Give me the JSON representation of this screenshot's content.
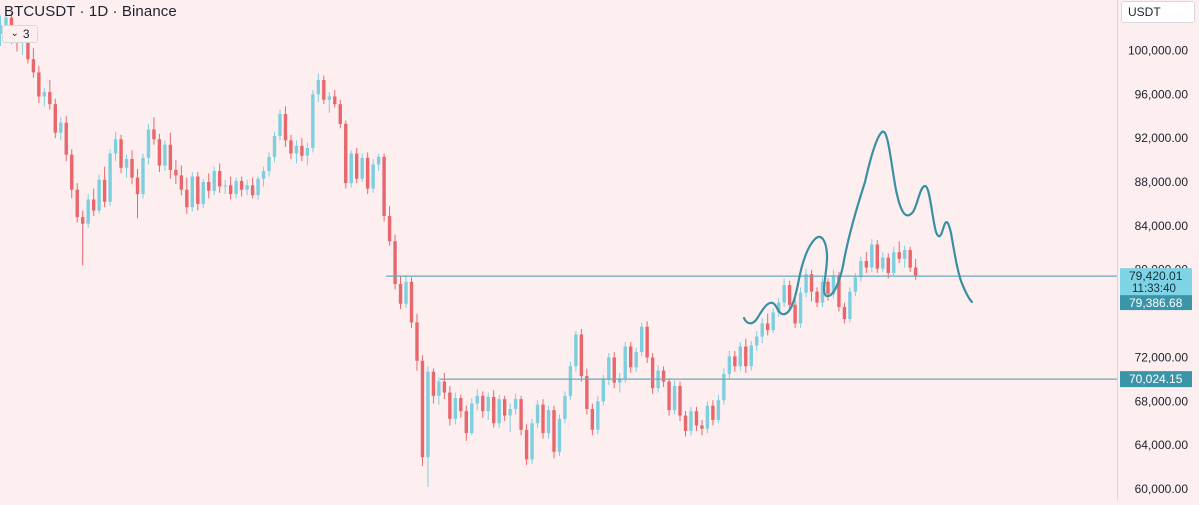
{
  "header": {
    "title": "BTCUSDT · 1D · Binance",
    "indicator_count": "3"
  },
  "currency_selector": {
    "value": "USDT"
  },
  "price_scale": {
    "ticks": [
      "100,000.00",
      "96,000.00",
      "92,000.00",
      "88,000.00",
      "84,000.00",
      "80,000.00",
      "72,000.00",
      "68,000.00",
      "64,000.00",
      "60,000.00"
    ],
    "tick_values": [
      100000,
      96000,
      92000,
      88000,
      84000,
      80000,
      72000,
      68000,
      64000,
      60000
    ]
  },
  "price_labels": {
    "last_price": "79,420.01",
    "countdown": "11:33:40",
    "price_line_2": "79,386.68",
    "support_level": "70,024.15"
  },
  "colors": {
    "background": "#fdeff0",
    "up_candle": "#7dcfdf",
    "down_candle": "#e8676d",
    "drawing_line": "#3a8fa3",
    "label_bg_light": "#7ed3e5",
    "label_bg_dark": "#3a95a8"
  },
  "chart_data": {
    "type": "candlestick",
    "symbol": "BTCUSDT",
    "interval": "1D",
    "exchange": "Binance",
    "y_range": [
      59000,
      104600
    ],
    "horizontal_levels": [
      79420.01,
      70024.15
    ],
    "candles": [
      [
        101500,
        103200,
        100400,
        102300
      ],
      [
        102300,
        103600,
        101500,
        103000
      ],
      [
        103000,
        103400,
        100600,
        101200
      ],
      [
        101200,
        102000,
        99900,
        100800
      ],
      [
        100800,
        101600,
        99600,
        101100
      ],
      [
        101100,
        101800,
        98800,
        99200
      ],
      [
        99200,
        100200,
        97500,
        98000
      ],
      [
        98000,
        98600,
        95200,
        95800
      ],
      [
        95800,
        96600,
        94900,
        96200
      ],
      [
        96200,
        97300,
        94600,
        95100
      ],
      [
        95100,
        95600,
        92000,
        92500
      ],
      [
        92500,
        93900,
        91800,
        93400
      ],
      [
        93400,
        94000,
        89900,
        90500
      ],
      [
        90500,
        91000,
        86500,
        87300
      ],
      [
        87300,
        87900,
        84300,
        84800
      ],
      [
        84800,
        85400,
        80400,
        84200
      ],
      [
        84200,
        86900,
        83800,
        86400
      ],
      [
        86400,
        87400,
        84900,
        85400
      ],
      [
        85400,
        88700,
        85100,
        88200
      ],
      [
        88200,
        89400,
        85700,
        86200
      ],
      [
        86200,
        91000,
        85800,
        90600
      ],
      [
        90600,
        92600,
        89900,
        91900
      ],
      [
        91900,
        92300,
        88800,
        89300
      ],
      [
        89300,
        90500,
        88400,
        90100
      ],
      [
        90100,
        90900,
        87800,
        88400
      ],
      [
        88400,
        89200,
        84700,
        86900
      ],
      [
        86900,
        90600,
        86500,
        90200
      ],
      [
        90200,
        93300,
        89600,
        92800
      ],
      [
        92800,
        93900,
        91400,
        91900
      ],
      [
        91900,
        92400,
        88900,
        89500
      ],
      [
        89500,
        91800,
        89000,
        91400
      ],
      [
        91400,
        92500,
        88300,
        89100
      ],
      [
        89100,
        90000,
        87800,
        88600
      ],
      [
        88600,
        89500,
        86800,
        87300
      ],
      [
        87300,
        88400,
        85100,
        85700
      ],
      [
        85700,
        88900,
        85300,
        88500
      ],
      [
        88500,
        88900,
        85400,
        86000
      ],
      [
        86000,
        88300,
        85600,
        88000
      ],
      [
        88000,
        88800,
        86500,
        87200
      ],
      [
        87200,
        89400,
        86800,
        89000
      ],
      [
        89000,
        89700,
        87000,
        87600
      ],
      [
        87600,
        88200,
        86900,
        87700
      ],
      [
        87700,
        88500,
        86400,
        86900
      ],
      [
        86900,
        88400,
        86500,
        88100
      ],
      [
        88100,
        88500,
        86700,
        87300
      ],
      [
        87300,
        88200,
        86800,
        87700
      ],
      [
        87700,
        88400,
        86500,
        86800
      ],
      [
        86800,
        88500,
        86400,
        88300
      ],
      [
        88300,
        89400,
        87600,
        89000
      ],
      [
        89000,
        90700,
        88500,
        90300
      ],
      [
        90300,
        92600,
        89800,
        92200
      ],
      [
        92200,
        94600,
        91800,
        94200
      ],
      [
        94200,
        94900,
        91200,
        91800
      ],
      [
        91800,
        92300,
        90100,
        90600
      ],
      [
        90600,
        91800,
        89700,
        91300
      ],
      [
        91300,
        92000,
        89900,
        90400
      ],
      [
        90400,
        91600,
        89500,
        91100
      ],
      [
        91100,
        96400,
        90700,
        96000
      ],
      [
        96000,
        97900,
        95300,
        97300
      ],
      [
        97300,
        97700,
        95100,
        95500
      ],
      [
        95500,
        96200,
        94300,
        95800
      ],
      [
        95800,
        96400,
        94800,
        95100
      ],
      [
        95100,
        95500,
        92900,
        93300
      ],
      [
        93300,
        93600,
        87400,
        87900
      ],
      [
        87900,
        90900,
        87500,
        90600
      ],
      [
        90600,
        91100,
        87900,
        88300
      ],
      [
        88300,
        90600,
        88000,
        90200
      ],
      [
        90200,
        90700,
        86900,
        87400
      ],
      [
        87400,
        90100,
        87000,
        89600
      ],
      [
        89600,
        90600,
        89000,
        90300
      ],
      [
        90300,
        90600,
        84400,
        84900
      ],
      [
        84900,
        85800,
        82200,
        82600
      ],
      [
        82600,
        83200,
        78200,
        78700
      ],
      [
        78700,
        79400,
        76400,
        76900
      ],
      [
        76900,
        79500,
        76500,
        78900
      ],
      [
        78900,
        79300,
        74700,
        75200
      ],
      [
        75200,
        76000,
        70800,
        71700
      ],
      [
        71700,
        72200,
        62100,
        62900
      ],
      [
        62900,
        71200,
        60200,
        70700
      ],
      [
        70700,
        71000,
        67800,
        68500
      ],
      [
        68500,
        70200,
        67700,
        69800
      ],
      [
        69800,
        70600,
        68200,
        68800
      ],
      [
        68800,
        69400,
        65800,
        66400
      ],
      [
        66400,
        68800,
        65900,
        68300
      ],
      [
        68300,
        68600,
        66500,
        67100
      ],
      [
        67100,
        67600,
        64400,
        65100
      ],
      [
        65100,
        68300,
        64900,
        67800
      ],
      [
        67800,
        69100,
        67200,
        68500
      ],
      [
        68500,
        68900,
        66500,
        67100
      ],
      [
        67100,
        68800,
        66300,
        68400
      ],
      [
        68400,
        69000,
        65600,
        66000
      ],
      [
        66000,
        68600,
        65600,
        68200
      ],
      [
        68200,
        68500,
        66200,
        66700
      ],
      [
        66700,
        67800,
        65200,
        67300
      ],
      [
        67300,
        68700,
        66800,
        68200
      ],
      [
        68200,
        68500,
        64900,
        65400
      ],
      [
        65400,
        65900,
        62200,
        62700
      ],
      [
        62700,
        66400,
        62300,
        66000
      ],
      [
        66000,
        68100,
        65600,
        67700
      ],
      [
        67700,
        68200,
        64600,
        65100
      ],
      [
        65100,
        67600,
        64600,
        67200
      ],
      [
        67200,
        67600,
        62800,
        63400
      ],
      [
        63400,
        66800,
        63000,
        66400
      ],
      [
        66400,
        68900,
        66000,
        68500
      ],
      [
        68500,
        71600,
        68100,
        71200
      ],
      [
        71200,
        74400,
        70700,
        74100
      ],
      [
        74100,
        74600,
        69800,
        70300
      ],
      [
        70300,
        71000,
        66800,
        67300
      ],
      [
        67300,
        67800,
        64900,
        65400
      ],
      [
        65400,
        68500,
        65000,
        68000
      ],
      [
        68000,
        70400,
        67600,
        70000
      ],
      [
        70000,
        72400,
        69500,
        72000
      ],
      [
        72000,
        72500,
        69200,
        69700
      ],
      [
        69700,
        70600,
        68800,
        70100
      ],
      [
        70100,
        73400,
        69700,
        73000
      ],
      [
        73000,
        73400,
        70600,
        71100
      ],
      [
        71100,
        72900,
        70700,
        72500
      ],
      [
        72500,
        75200,
        72100,
        74800
      ],
      [
        74800,
        75300,
        71500,
        72000
      ],
      [
        72000,
        72400,
        68700,
        69200
      ],
      [
        69200,
        71300,
        68800,
        70800
      ],
      [
        70800,
        71200,
        69300,
        69800
      ],
      [
        69800,
        70100,
        66700,
        67200
      ],
      [
        67200,
        69900,
        66800,
        69400
      ],
      [
        69400,
        69800,
        66200,
        66700
      ],
      [
        66700,
        67100,
        64800,
        65300
      ],
      [
        65300,
        67500,
        64900,
        67100
      ],
      [
        67100,
        67500,
        65300,
        65800
      ],
      [
        65800,
        66300,
        64900,
        65500
      ],
      [
        65500,
        68000,
        65100,
        67600
      ],
      [
        67600,
        68100,
        65800,
        66300
      ],
      [
        66300,
        68600,
        66000,
        68100
      ],
      [
        68100,
        71000,
        67700,
        70500
      ],
      [
        70500,
        72600,
        70100,
        72100
      ],
      [
        72100,
        72600,
        70700,
        71200
      ],
      [
        71200,
        73400,
        70800,
        73000
      ],
      [
        73000,
        73700,
        70600,
        71200
      ],
      [
        71200,
        73500,
        70800,
        73100
      ],
      [
        73100,
        74400,
        72600,
        73900
      ],
      [
        73900,
        75600,
        73300,
        75100
      ],
      [
        75100,
        76000,
        74000,
        74500
      ],
      [
        74500,
        76500,
        74200,
        76100
      ],
      [
        76100,
        77400,
        75700,
        77000
      ],
      [
        77000,
        79200,
        76600,
        78600
      ],
      [
        78600,
        79000,
        76300,
        76800
      ],
      [
        76800,
        77400,
        74700,
        75100
      ],
      [
        75100,
        78400,
        74700,
        77900
      ],
      [
        77900,
        80100,
        77500,
        79600
      ],
      [
        79600,
        80000,
        77100,
        78000
      ],
      [
        78000,
        78400,
        76600,
        77000
      ],
      [
        77000,
        79300,
        76600,
        78900
      ],
      [
        78900,
        79200,
        77200,
        77800
      ],
      [
        77800,
        80000,
        77400,
        79500
      ],
      [
        79500,
        79800,
        76200,
        76600
      ],
      [
        76600,
        77000,
        75100,
        75500
      ],
      [
        75500,
        78400,
        75200,
        78000
      ],
      [
        78000,
        79700,
        77600,
        79300
      ],
      [
        79300,
        81200,
        78900,
        80800
      ],
      [
        80800,
        81600,
        79700,
        80200
      ],
      [
        80200,
        82800,
        79800,
        82300
      ],
      [
        82300,
        82700,
        79700,
        80100
      ],
      [
        80100,
        81600,
        79800,
        81100
      ],
      [
        81100,
        81500,
        79200,
        79700
      ],
      [
        79700,
        82100,
        79400,
        81600
      ],
      [
        81600,
        82600,
        80600,
        81000
      ],
      [
        81000,
        82200,
        80200,
        81800
      ],
      [
        81800,
        82100,
        79800,
        80200
      ],
      [
        80200,
        81000,
        79100,
        79420
      ]
    ]
  }
}
